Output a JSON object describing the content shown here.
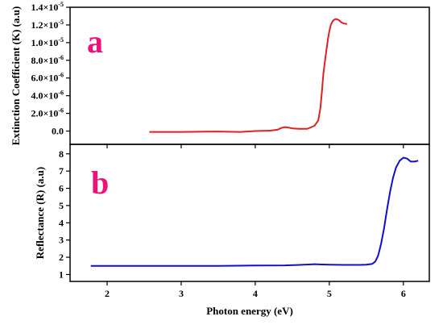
{
  "colors": {
    "panel_a_line": "#dd2222",
    "panel_b_line": "#1010cc",
    "panel_letter": "#ee1177",
    "axes": "#000000"
  },
  "chart_data": [
    {
      "type": "line",
      "panel_label": "a",
      "ylabel": "Extinction Coefficient (K) (a.u)",
      "xlim": [
        1.5,
        6.35
      ],
      "ylim": [
        -1.5e-06,
        1.4e-05
      ],
      "y_ticks": [
        {
          "value": 0.0,
          "label": "0.0"
        },
        {
          "value": 2e-06,
          "label": "2.0×10",
          "exp": "-6"
        },
        {
          "value": 4e-06,
          "label": "4.0×10",
          "exp": "-6"
        },
        {
          "value": 6e-06,
          "label": "6.0×10",
          "exp": "-6"
        },
        {
          "value": 8e-06,
          "label": "8.0×10",
          "exp": "-6"
        },
        {
          "value": 1e-05,
          "label": "1.0×10",
          "exp": "-5"
        },
        {
          "value": 1.2e-05,
          "label": "1.2×10",
          "exp": "-5"
        },
        {
          "value": 1.4e-05,
          "label": "1.4×10",
          "exp": "-5"
        }
      ],
      "grid": false,
      "legend": "none",
      "series": [
        {
          "x": [
            2.57,
            3.0,
            3.5,
            3.8,
            4.0,
            4.2,
            4.3,
            4.35,
            4.4,
            4.45,
            4.5,
            4.6,
            4.7,
            4.8,
            4.85,
            4.88,
            4.9,
            4.92,
            4.95,
            4.98,
            5.0,
            5.02,
            5.05,
            5.08,
            5.1,
            5.13,
            5.16,
            5.2,
            5.24
          ],
          "y": [
            -1e-07,
            -1e-07,
            -5e-08,
            -1e-07,
            0.0,
            5e-08,
            1.5e-07,
            3.5e-07,
            4.5e-07,
            4e-07,
            3e-07,
            2.5e-07,
            2.5e-07,
            6e-07,
            1.2e-06,
            2.6e-06,
            4.5e-06,
            6.5e-06,
            8.5e-06,
            1.03e-05,
            1.13e-05,
            1.2e-05,
            1.25e-05,
            1.265e-05,
            1.265e-05,
            1.255e-05,
            1.23e-05,
            1.215e-05,
            1.21e-05
          ]
        }
      ]
    },
    {
      "type": "line",
      "panel_label": "b",
      "ylabel": "Reflectance (R) (a.u)",
      "xlabel": "Photon energy (eV)",
      "xlim": [
        1.5,
        6.35
      ],
      "ylim": [
        0.6,
        8.55
      ],
      "x_ticks": [
        2,
        3,
        4,
        5,
        6
      ],
      "y_ticks": [
        1,
        2,
        3,
        4,
        5,
        6,
        7,
        8
      ],
      "grid": false,
      "legend": "none",
      "series": [
        {
          "x": [
            1.78,
            2.0,
            2.5,
            3.0,
            3.5,
            4.0,
            4.4,
            4.6,
            4.8,
            4.9,
            5.0,
            5.2,
            5.4,
            5.5,
            5.58,
            5.62,
            5.66,
            5.7,
            5.74,
            5.78,
            5.82,
            5.86,
            5.9,
            5.95,
            6.0,
            6.05,
            6.1,
            6.15,
            6.2
          ],
          "y": [
            1.5,
            1.5,
            1.5,
            1.5,
            1.5,
            1.52,
            1.53,
            1.56,
            1.6,
            1.58,
            1.57,
            1.56,
            1.56,
            1.57,
            1.62,
            1.75,
            2.1,
            2.8,
            3.7,
            4.8,
            5.8,
            6.6,
            7.2,
            7.6,
            7.78,
            7.72,
            7.55,
            7.55,
            7.6
          ]
        }
      ]
    }
  ]
}
